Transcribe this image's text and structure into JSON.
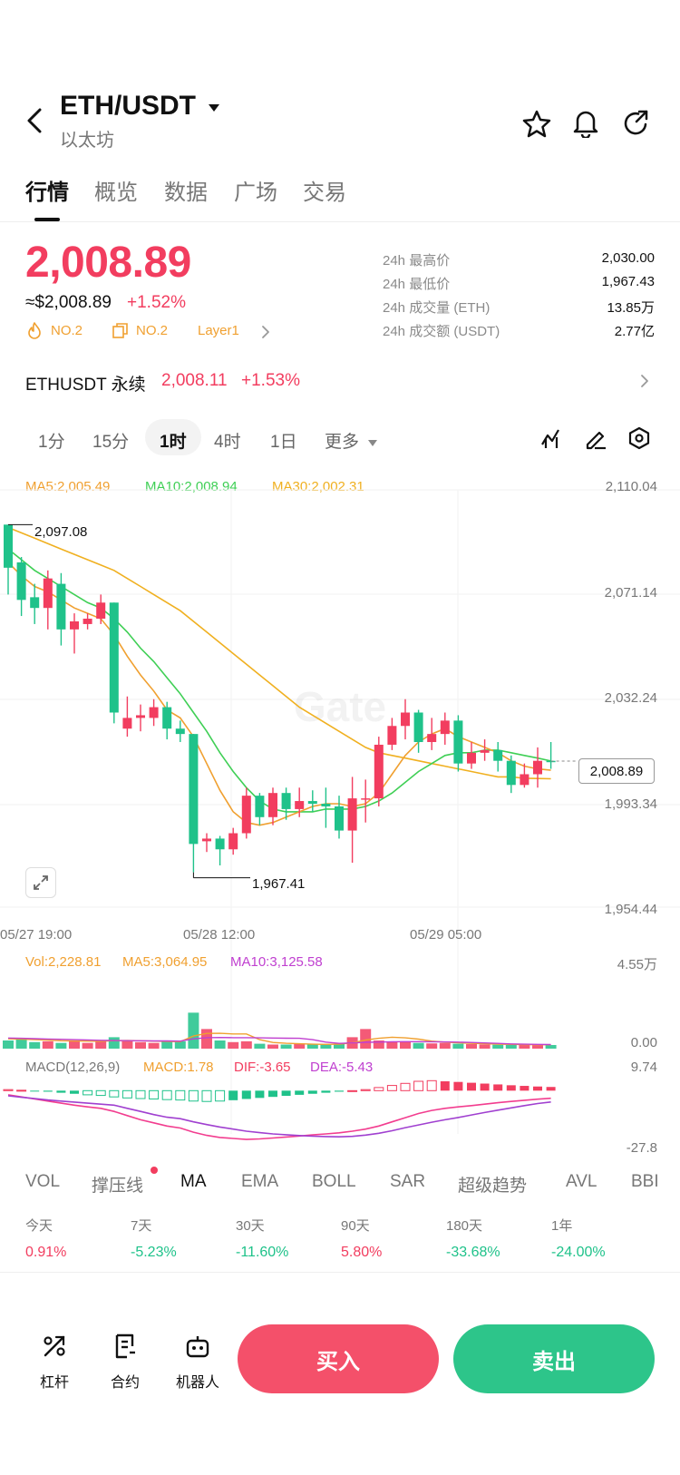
{
  "header": {
    "pair": "ETH/USDT",
    "name": "以太坊"
  },
  "tabs": [
    "行情",
    "概览",
    "数据",
    "广场",
    "交易"
  ],
  "summary": {
    "price": "2,008.89",
    "usd": "≈$2,008.89",
    "change": "+1.52%",
    "tags": [
      "NO.2",
      "NO.2",
      "Layer1"
    ],
    "stats": [
      {
        "label": "24h 最高价",
        "value": "2,030.00"
      },
      {
        "label": "24h 最低价",
        "value": "1,967.43"
      },
      {
        "label": "24h 成交量 (ETH)",
        "value": "13.85万"
      },
      {
        "label": "24h 成交额 (USDT)",
        "value": "2.77亿"
      }
    ]
  },
  "perp": {
    "name": "ETHUSDT 永续",
    "price": "2,008.11",
    "change": "+1.53%"
  },
  "timeframes": [
    "1分",
    "15分",
    "1时",
    "4时",
    "1日",
    "更多"
  ],
  "active_timeframe": "1时",
  "ma_legend": {
    "ma5": "MA5:2,005.49",
    "ma10": "MA10:2,008.94",
    "ma30": "MA30:2,002.31"
  },
  "price_axis": [
    "2,110.04",
    "2,071.14",
    "2,032.24",
    "1,993.34",
    "1,954.44"
  ],
  "high_marker": "2,097.08",
  "low_marker": "1,967.41",
  "current_price_tag": "2,008.89",
  "watermark": "Gate",
  "time_axis": [
    "05/27 19:00",
    "05/28 12:00",
    "05/29 05:00"
  ],
  "vol_legend": {
    "vol": "Vol:2,228.81",
    "ma5": "MA5:3,064.95",
    "ma10": "MA10:3,125.58"
  },
  "vol_axis": [
    "4.55万",
    "0.00"
  ],
  "macd_legend": {
    "label": "MACD(12,26,9)",
    "macd": "MACD:1.78",
    "dif": "DIF:-3.65",
    "dea": "DEA:-5.43"
  },
  "macd_axis": [
    "9.74",
    "-27.8"
  ],
  "indicator_tabs": [
    "VOL",
    "撑压线",
    "MA",
    "EMA",
    "BOLL",
    "SAR",
    "超级趋势",
    "AVL",
    "BBI"
  ],
  "active_indicator": "MA",
  "performance": [
    {
      "label": "今天",
      "value": "0.91%",
      "dir": "up"
    },
    {
      "label": "7天",
      "value": "-5.23%",
      "dir": "down"
    },
    {
      "label": "30天",
      "value": "-11.60%",
      "dir": "down"
    },
    {
      "label": "90天",
      "value": "5.80%",
      "dir": "up"
    },
    {
      "label": "180天",
      "value": "-33.68%",
      "dir": "down"
    },
    {
      "label": "1年",
      "value": "-24.00%",
      "dir": "down"
    }
  ],
  "bottom": {
    "lever": "杠杆",
    "contract": "合约",
    "bot": "机器人",
    "buy": "买入",
    "sell": "卖出"
  },
  "chart_data": {
    "type": "candlestick",
    "interval": "1h",
    "ylim": [
      1954.44,
      2110.04
    ],
    "up_color": "#f23d5f",
    "down_color": "#1fc28a",
    "candles": [
      [
        2097.08,
        2081.0,
        2097.08,
        2071.0
      ],
      [
        2083.0,
        2069.0,
        2085.0,
        2063.0
      ],
      [
        2070.0,
        2066.0,
        2075.0,
        2060.0
      ],
      [
        2066.0,
        2077.0,
        2080.0,
        2058.0
      ],
      [
        2075.0,
        2058.0,
        2079.0,
        2052.0
      ],
      [
        2058.0,
        2061.0,
        2064.0,
        2049.0
      ],
      [
        2060.0,
        2062.0,
        2064.0,
        2058.0
      ],
      [
        2062.0,
        2068.0,
        2071.0,
        2060.0
      ],
      [
        2068.0,
        2027.0,
        2068.0,
        2023.0
      ],
      [
        2021.0,
        2025.0,
        2033.0,
        2018.0
      ],
      [
        2025.0,
        2026.0,
        2030.0,
        2020.0
      ],
      [
        2025.0,
        2029.0,
        2032.0,
        2022.0
      ],
      [
        2029.0,
        2021.0,
        2031.0,
        2017.0
      ],
      [
        2021.0,
        2019.0,
        2024.0,
        2016.0
      ],
      [
        2019.0,
        1978.0,
        2019.0,
        1967.41
      ],
      [
        1979.0,
        1980.0,
        1982.0,
        1975.0
      ],
      [
        1980.0,
        1976.0,
        1981.0,
        1970.0
      ],
      [
        1976.0,
        1982.0,
        1984.0,
        1974.0
      ],
      [
        1982.0,
        1996.0,
        1999.0,
        1980.0
      ],
      [
        1996.0,
        1988.0,
        1997.0,
        1985.0
      ],
      [
        1988.0,
        1997.0,
        1999.0,
        1985.0
      ],
      [
        1997.0,
        1991.0,
        1999.0,
        1987.0
      ],
      [
        1991.0,
        1994.0,
        1999.0,
        1988.0
      ],
      [
        1994.0,
        1993.0,
        1998.0,
        1990.0
      ],
      [
        1993.0,
        1992.0,
        1999.0,
        1984.0
      ],
      [
        1992.0,
        1983.0,
        1996.0,
        1980.0
      ],
      [
        1983.0,
        1995.0,
        2003.0,
        1971.0
      ],
      [
        1995.0,
        1995.0,
        2002.0,
        1986.0
      ],
      [
        1995.0,
        2015.0,
        2018.0,
        1992.0
      ],
      [
        2015.0,
        2022.0,
        2025.0,
        2013.0
      ],
      [
        2022.0,
        2027.0,
        2032.0,
        2017.0
      ],
      [
        2027.0,
        2016.0,
        2028.0,
        2012.0
      ],
      [
        2016.0,
        2019.0,
        2025.0,
        2013.0
      ],
      [
        2019.0,
        2024.0,
        2027.0,
        2015.0
      ],
      [
        2024.0,
        2008.0,
        2026.0,
        2005.0
      ],
      [
        2008.0,
        2012.0,
        2016.0,
        2006.0
      ],
      [
        2012.0,
        2013.0,
        2017.0,
        2009.0
      ],
      [
        2013.0,
        2009.0,
        2016.0,
        2005.0
      ],
      [
        2009.0,
        2000.0,
        2011.0,
        1997.0
      ],
      [
        2000.0,
        2004.0,
        2008.0,
        1999.0
      ],
      [
        2004.0,
        2009.0,
        2014.0,
        1999.0
      ],
      [
        2009.0,
        2008.89,
        2016.0,
        2006.0
      ]
    ],
    "ma5": [
      2083,
      2078,
      2074,
      2072,
      2069,
      2066,
      2064,
      2062,
      2056,
      2048,
      2041,
      2035,
      2028,
      2025,
      2018,
      2008,
      1998,
      1990,
      1986,
      1985,
      1986,
      1988,
      1990,
      1992,
      1993,
      1993,
      1992,
      1993,
      1997,
      2004,
      2011,
      2016,
      2019,
      2021,
      2018,
      2016,
      2014,
      2012,
      2009,
      2007,
      2006,
      2005.49
    ],
    "ma10": [
      2088,
      2084,
      2080,
      2077,
      2074,
      2071,
      2068,
      2066,
      2062,
      2057,
      2051,
      2046,
      2040,
      2034,
      2027,
      2020,
      2012,
      2005,
      1999,
      1994,
      1991,
      1990,
      1990,
      1990,
      1991,
      1991,
      1991,
      1992,
      1994,
      1997,
      2001,
      2005,
      2008,
      2011,
      2012,
      2012,
      2013,
      2013,
      2012,
      2011,
      2010,
      2008.94
    ],
    "ma30": [
      2096,
      2094,
      2092,
      2090,
      2088,
      2086,
      2084,
      2082,
      2080,
      2077,
      2074,
      2071,
      2068,
      2065,
      2061,
      2057,
      2053,
      2049,
      2045,
      2041,
      2037,
      2033,
      2029,
      2026,
      2023,
      2020,
      2017,
      2014,
      2012,
      2011,
      2010,
      2009,
      2008,
      2007,
      2006,
      2005,
      2004,
      2003,
      2003,
      2002.5,
      2002.4,
      2002.31
    ],
    "volume": {
      "ylim": [
        0,
        45500
      ],
      "values": [
        5000,
        6000,
        4000,
        4500,
        3500,
        5000,
        3500,
        4500,
        7000,
        4500,
        4000,
        3500,
        5000,
        4500,
        22000,
        12000,
        5000,
        4000,
        4500,
        3000,
        2500,
        2500,
        2800,
        2600,
        2500,
        3000,
        7000,
        12000,
        5000,
        4000,
        4500,
        3500,
        3200,
        3500,
        3000,
        2800,
        2600,
        2400,
        2300,
        2400,
        2200,
        2228.81
      ],
      "ma5": [
        6000,
        5800,
        5500,
        5200,
        4800,
        4700,
        4600,
        4500,
        4900,
        5000,
        4800,
        4600,
        4400,
        4300,
        7700,
        9300,
        9400,
        9000,
        9000,
        5500,
        3800,
        3300,
        3000,
        2700,
        2600,
        2700,
        3500,
        5300,
        6300,
        7000,
        6600,
        5800,
        4600,
        4000,
        3600,
        3200,
        3000,
        2800,
        2600,
        2500,
        2400,
        2400
      ],
      "ma10": [
        6500,
        6300,
        6100,
        5900,
        5700,
        5500,
        5300,
        5100,
        5000,
        4900,
        4800,
        4700,
        4700,
        4600,
        6000,
        6700,
        6800,
        6700,
        6700,
        6600,
        6500,
        6400,
        6300,
        5500,
        4000,
        3200,
        3500,
        3900,
        4000,
        4200,
        4300,
        4300,
        4200,
        4100,
        4000,
        3800,
        3500,
        3200,
        2900,
        2700,
        2600,
        2500
      ]
    },
    "macd": {
      "ylim": [
        -27.8,
        9.74
      ],
      "hist": [
        0.5,
        0.2,
        -0.2,
        -0.5,
        -1,
        -1.5,
        -2,
        -2.3,
        -3,
        -3.5,
        -3.8,
        -4,
        -4.3,
        -4.5,
        -5,
        -5.2,
        -5,
        -4.6,
        -4,
        -3.5,
        -3,
        -2.5,
        -2,
        -1.5,
        -1,
        -0.5,
        0,
        0.5,
        1.5,
        2.5,
        3.5,
        4.5,
        4.8,
        4.5,
        4.2,
        3.8,
        3.4,
        3,
        2.6,
        2.3,
        2,
        1.78
      ],
      "dif": [
        -2,
        -3,
        -4,
        -5,
        -6,
        -7,
        -7.8,
        -8.5,
        -10,
        -12,
        -14,
        -15.5,
        -17,
        -18,
        -20,
        -21.5,
        -22.5,
        -23,
        -23.5,
        -23.2,
        -22.8,
        -22.3,
        -21.8,
        -21.3,
        -20.8,
        -20.3,
        -19.5,
        -18.5,
        -17,
        -15,
        -13,
        -11,
        -9.5,
        -8.5,
        -7.8,
        -7.2,
        -6.5,
        -5.8,
        -5.2,
        -4.6,
        -4.1,
        -3.65
      ],
      "dea": [
        -2.5,
        -3.2,
        -3.8,
        -4.5,
        -5,
        -5.5,
        -6,
        -6.5,
        -7,
        -8.5,
        -10,
        -11.5,
        -12.8,
        -13.5,
        -15,
        -16.3,
        -17.5,
        -18.5,
        -19.5,
        -20.2,
        -20.8,
        -21.2,
        -21.6,
        -21.9,
        -22.1,
        -22.2,
        -22,
        -21.4,
        -20.5,
        -19.3,
        -17.8,
        -16.5,
        -15.2,
        -14,
        -12.9,
        -11.7,
        -10.5,
        -9.4,
        -8.3,
        -7.2,
        -6.2,
        -5.43
      ]
    }
  }
}
